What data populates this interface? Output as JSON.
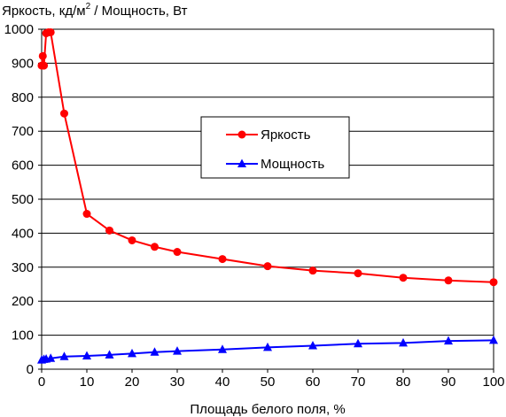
{
  "chart_data": {
    "type": "line",
    "title": "",
    "ylabel_prefix": "Яркость, кд/м",
    "ylabel_sup": "2",
    "ylabel_suffix": " / Мощность, Вт",
    "xlabel": "Площадь белого поля, %",
    "xlim": [
      0,
      100
    ],
    "ylim": [
      0,
      1000
    ],
    "xticks": [
      0,
      10,
      20,
      30,
      40,
      50,
      60,
      70,
      80,
      90,
      100
    ],
    "yticks": [
      0,
      100,
      200,
      300,
      400,
      500,
      600,
      700,
      800,
      900,
      1000
    ],
    "grid": "horizontal",
    "legend_position": "center-right",
    "series": [
      {
        "name": "Яркость",
        "color": "#ff0000",
        "marker": "circle",
        "x": [
          0,
          0.25,
          0.5,
          1,
          1.5,
          2,
          5,
          10,
          15,
          20,
          25,
          30,
          40,
          50,
          60,
          70,
          80,
          90,
          100
        ],
        "y": [
          893,
          921,
          893,
          988,
          991,
          991,
          752,
          457,
          408,
          379,
          360,
          345,
          324,
          303,
          290,
          282,
          269,
          261,
          256
        ]
      },
      {
        "name": "Мощность",
        "color": "#0000ff",
        "marker": "triangle",
        "x": [
          0,
          0.5,
          1,
          2,
          5,
          10,
          15,
          20,
          25,
          30,
          40,
          50,
          60,
          70,
          80,
          90,
          100
        ],
        "y": [
          27,
          29,
          30,
          32,
          37,
          39,
          42,
          46,
          50,
          53,
          58,
          64,
          69,
          75,
          77,
          83,
          85
        ]
      }
    ]
  }
}
